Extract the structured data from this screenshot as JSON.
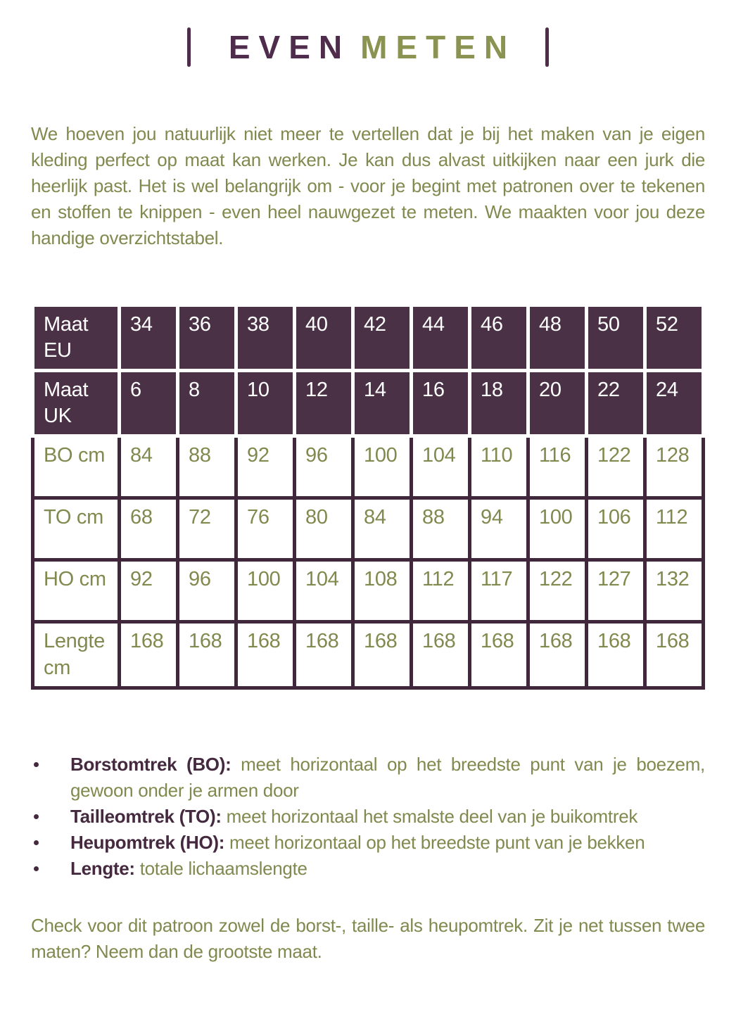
{
  "colors": {
    "purple_title": "#4f2c4c",
    "purple_header_bg": "#4a3146",
    "purple_border": "#40273c",
    "purple_text": "#44293f",
    "green_text": "#82894f",
    "green_title": "#8b9353",
    "page_bg": "#ffffff"
  },
  "title": {
    "word1": "EVEN",
    "word2": "METEN"
  },
  "intro": "We hoeven jou natuurlijk niet meer te vertellen dat je bij het maken van je eigen kleding perfect op maat kan werken. Je kan dus alvast uitkijken naar een jurk die heerlijk past. Het is wel belangrijk om - voor je begint met patronen over te tekenen en stoffen te knippen - even heel nauwgezet te meten. We maakten voor jou deze handige overzichtstabel.",
  "size_table": {
    "header_rows": [
      {
        "label": "Maat EU",
        "values": [
          "34",
          "36",
          "38",
          "40",
          "42",
          "44",
          "46",
          "48",
          "50",
          "52"
        ]
      },
      {
        "label": "Maat UK",
        "values": [
          "6",
          "8",
          "10",
          "12",
          "14",
          "16",
          "18",
          "20",
          "22",
          "24"
        ]
      }
    ],
    "body_rows": [
      {
        "label": "BO cm",
        "values": [
          "84",
          "88",
          "92",
          "96",
          "100",
          "104",
          "110",
          "116",
          "122",
          "128"
        ]
      },
      {
        "label": "TO cm",
        "values": [
          "68",
          "72",
          "76",
          "80",
          "84",
          "88",
          "94",
          "100",
          "106",
          "112"
        ]
      },
      {
        "label": "HO cm",
        "values": [
          "92",
          "96",
          "100",
          "104",
          "108",
          "112",
          "117",
          "122",
          "127",
          "132"
        ]
      },
      {
        "label": "Lengte cm",
        "values": [
          "168",
          "168",
          "168",
          "168",
          "168",
          "168",
          "168",
          "168",
          "168",
          "168"
        ]
      }
    ]
  },
  "bullets": [
    {
      "label": "Borstomtrek (BO):",
      "text": "meet horizontaal op het breedste punt van je boezem, gewoon onder je armen door"
    },
    {
      "label": "Tailleomtrek (TO):",
      "text": "meet horizontaal het smalste deel van je buikomtrek"
    },
    {
      "label": "Heupomtrek (HO):",
      "text": "meet horizontaal op het breedste punt van je bekken"
    },
    {
      "label": "Lengte:",
      "text": "totale lichaamslengte"
    }
  ],
  "footer": "Check voor dit patroon zowel de borst-, taille- als heupomtrek. Zit je net tussen twee maten? Neem dan de grootste maat."
}
